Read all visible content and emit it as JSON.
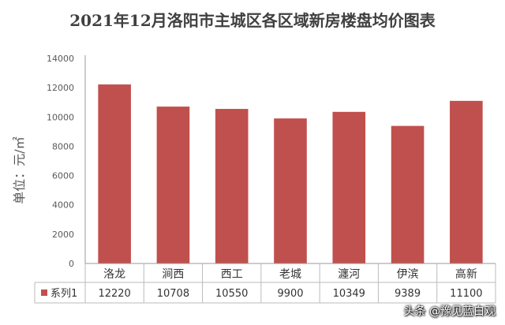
{
  "chart_data": {
    "type": "bar",
    "title": "2021年12月洛阳市主城区各区域新房楼盘均价图表",
    "ylabel": "单位：元/㎡",
    "categories": [
      "洛龙",
      "涧西",
      "西工",
      "老城",
      "瀍河",
      "伊滨",
      "高新"
    ],
    "series": [
      {
        "name": "系列1",
        "values": [
          12220,
          10708,
          10550,
          9900,
          10349,
          9389,
          11100
        ]
      }
    ],
    "yticks": [
      "0",
      "2000",
      "4000",
      "6000",
      "8000",
      "10000",
      "12000",
      "14000"
    ],
    "ylim": [
      0,
      14000
    ],
    "grid": false,
    "legend": "data-table-bottom",
    "colors": {
      "bar": "#c0504d",
      "axis": "#999999",
      "table": "#bbbbbb"
    }
  },
  "watermark": "头条 @豫见蓝白观"
}
